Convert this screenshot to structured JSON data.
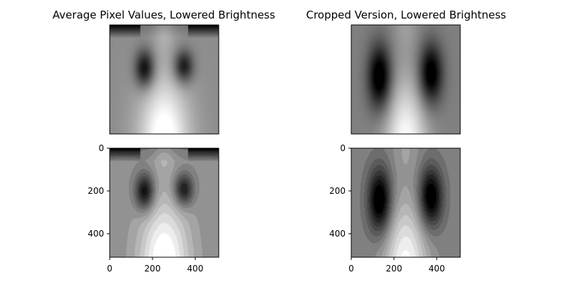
{
  "panels": [
    {
      "id": "avg-smooth",
      "title": "Average Pixel Values, Lowered Brightness",
      "style": "smooth",
      "variant": "full",
      "show_axes": false
    },
    {
      "id": "crop-smooth",
      "title": "Cropped Version, Lowered Brightness",
      "style": "smooth",
      "variant": "cropped",
      "show_axes": false
    },
    {
      "id": "avg-contour",
      "title": "",
      "style": "contour",
      "variant": "full",
      "show_axes": true,
      "x_ticks": [
        "0",
        "200",
        "400"
      ],
      "y_ticks": [
        "0",
        "200",
        "400"
      ]
    },
    {
      "id": "crop-contour",
      "title": "",
      "style": "contour",
      "variant": "cropped",
      "show_axes": true,
      "x_ticks": [
        "0",
        "200",
        "400"
      ],
      "y_ticks": [
        "0",
        "200",
        "400"
      ]
    }
  ],
  "image_extent": 512,
  "colormap": "gray"
}
